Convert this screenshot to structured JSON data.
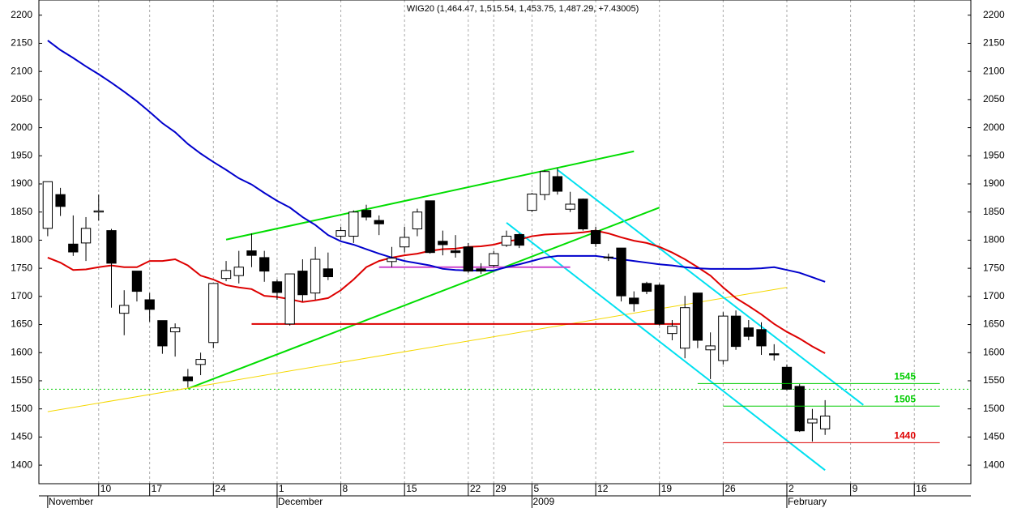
{
  "chart_data": {
    "type": "candlestick",
    "title": "WIG20 (1,464.47, 1,515.54, 1,453.75, 1,487.29, +7.43005)",
    "categories": [
      null,
      null,
      null,
      null,
      "10",
      null,
      null,
      null,
      "17",
      null,
      null,
      null,
      null,
      "24",
      null,
      null,
      null,
      null,
      "1",
      null,
      null,
      null,
      null,
      "8",
      null,
      null,
      null,
      null,
      "15",
      null,
      null,
      null,
      null,
      "22",
      null,
      "29",
      null,
      null,
      "5",
      null,
      null,
      null,
      null,
      "12",
      null,
      null,
      null,
      null,
      "19",
      null,
      null,
      null,
      null,
      "26",
      null,
      null,
      null,
      null,
      "2",
      null,
      null,
      null,
      null,
      "9",
      null,
      null,
      null,
      null,
      "16",
      null,
      null,
      null,
      null
    ],
    "months": [
      "November",
      null,
      null,
      null,
      null,
      null,
      null,
      null,
      null,
      null,
      null,
      null,
      null,
      null,
      null,
      null,
      null,
      null,
      "December",
      null,
      null,
      null,
      null,
      null,
      null,
      null,
      null,
      null,
      null,
      null,
      null,
      null,
      null,
      null,
      null,
      null,
      null,
      null,
      "2009",
      null,
      null,
      null,
      null,
      null,
      null,
      null,
      null,
      null,
      null,
      null,
      null,
      null,
      null,
      null,
      null,
      null,
      null,
      null,
      "February",
      null,
      null,
      null,
      null,
      null,
      null,
      null,
      null,
      null,
      null,
      null,
      null,
      null,
      null
    ],
    "open": [
      1821,
      1881,
      1793,
      1795,
      1850,
      1817,
      1670,
      1745,
      1694,
      1657,
      1637,
      1557,
      1579,
      1618,
      1732,
      1737,
      1781,
      1769,
      1726,
      1651,
      1745,
      1706,
      1749,
      1807,
      1807,
      1853,
      1835,
      1762,
      1788,
      1820,
      1870,
      1798,
      1781,
      1788,
      1749,
      1755,
      1791,
      1810,
      1853,
      1881,
      1913,
      1855,
      1873,
      1817,
      1770,
      1786,
      1697,
      1723,
      1720,
      1634,
      1608,
      1706,
      1605,
      1586,
      1665,
      1644,
      1641,
      1598,
      1574,
      1540,
      1475,
      1464.47,
      null,
      null,
      null,
      null,
      null,
      null,
      null,
      null,
      null,
      null,
      null
    ],
    "high": [
      1904,
      1893,
      1844,
      1841,
      1881,
      1820,
      1711,
      1745,
      1706,
      1657,
      1652,
      1571,
      1600,
      1723,
      1763,
      1781,
      1812,
      1781,
      1730,
      1740,
      1766,
      1788,
      1778,
      1824,
      1853,
      1863,
      1844,
      1788,
      1824,
      1856,
      1870,
      1817,
      1809,
      1795,
      1759,
      1781,
      1817,
      1812,
      1884,
      1925,
      1928,
      1886,
      1874,
      1824,
      1776,
      1786,
      1709,
      1726,
      1723,
      1658,
      1701,
      1706,
      1636,
      1672,
      1675,
      1658,
      1654,
      1615,
      1579,
      1544,
      1500,
      1515.54,
      null,
      null,
      null,
      null,
      null,
      null,
      null,
      null,
      null,
      null,
      null
    ],
    "low": [
      1807,
      1843,
      1772,
      1763,
      1835,
      1680,
      1631,
      1691,
      1655,
      1598,
      1593,
      1538,
      1560,
      1608,
      1727,
      1723,
      1752,
      1726,
      1694,
      1648,
      1691,
      1694,
      1729,
      1801,
      1795,
      1835,
      1809,
      1752,
      1778,
      1807,
      1776,
      1773,
      1769,
      1742,
      1740,
      1752,
      1788,
      1786,
      1850,
      1871,
      1881,
      1850,
      1817,
      1788,
      1763,
      1691,
      1673,
      1704,
      1648,
      1622,
      1590,
      1608,
      1553,
      1579,
      1605,
      1622,
      1596,
      1586,
      1533,
      1459,
      1442,
      1453.75,
      null,
      null,
      null,
      null,
      null,
      null,
      null,
      null,
      null,
      null,
      null
    ],
    "close": [
      1904,
      1860,
      1779,
      1821,
      1852,
      1759,
      1684,
      1709,
      1677,
      1612,
      1644,
      1550,
      1588,
      1723,
      1746,
      1752,
      1773,
      1745,
      1707,
      1740,
      1703,
      1766,
      1735,
      1817,
      1850,
      1841,
      1829,
      1768,
      1805,
      1850,
      1778,
      1792,
      1778,
      1745,
      1745,
      1776,
      1807,
      1791,
      1882,
      1922,
      1887,
      1864,
      1820,
      1794,
      1769,
      1701,
      1687,
      1709,
      1651,
      1647,
      1680,
      1622,
      1612,
      1665,
      1611,
      1629,
      1612,
      1596,
      1535,
      1461,
      1482,
      1487.29,
      null,
      null,
      null,
      null,
      null,
      null,
      null,
      null,
      null,
      null,
      null
    ],
    "up_color": "#ffffff",
    "down_color": "#000000",
    "series": [
      {
        "color": "#dd0000",
        "values": [
          1769,
          1760,
          1747,
          1748,
          1752,
          1755,
          1752,
          1752,
          1763,
          1763,
          1766,
          1755,
          1737,
          1730,
          1720,
          1716,
          1713,
          1701,
          1699,
          1695,
          1690,
          1693,
          1697,
          1711,
          1730,
          1752,
          1763,
          1769,
          1773,
          1776,
          1781,
          1784,
          1785,
          1788,
          1789,
          1792,
          1798,
          1801,
          1807,
          1810,
          1811,
          1812,
          1814,
          1817,
          1812,
          1805,
          1799,
          1795,
          1788,
          1778,
          1766,
          1752,
          1737,
          1716,
          1697,
          1683,
          1668,
          1651,
          1637,
          1625,
          1611,
          1599,
          null,
          null,
          null,
          null,
          null,
          null,
          null,
          null,
          null,
          null,
          null
        ]
      },
      {
        "color": "#0000cc",
        "values": [
          2155,
          2138,
          2124,
          2109,
          2095,
          2080,
          2064,
          2047,
          2028,
          2008,
          1992,
          1971,
          1954,
          1939,
          1925,
          1910,
          1899,
          1884,
          1870,
          1858,
          1841,
          1827,
          1809,
          1798,
          1792,
          1784,
          1776,
          1769,
          1763,
          1759,
          1755,
          1749,
          1747,
          1746,
          1746,
          1746,
          1752,
          1757,
          1763,
          1769,
          1772,
          1772,
          1772,
          1772,
          1769,
          1766,
          1763,
          1760,
          1757,
          1755,
          1752,
          1750,
          1749,
          1749,
          1749,
          1749,
          1750,
          1752,
          1747,
          1742,
          1734,
          1726,
          null,
          null,
          null,
          null,
          null,
          null,
          null,
          null,
          null,
          null,
          null
        ]
      }
    ],
    "trendlines": [
      {
        "color": "#00dd00",
        "x": [
          14,
          46
        ],
        "y": [
          1801,
          1958
        ]
      },
      {
        "color": "#00dd00",
        "x": [
          11,
          48
        ],
        "y": [
          1536,
          1858
        ]
      },
      {
        "color": "#f5d800",
        "x": [
          0,
          58
        ],
        "y": [
          1495,
          1716
        ]
      },
      {
        "color": "#00e0f0",
        "x": [
          40,
          64
        ],
        "y": [
          1925,
          1507
        ]
      },
      {
        "color": "#00e0f0",
        "x": [
          36,
          61
        ],
        "y": [
          1831,
          1391
        ]
      },
      {
        "color": "#cc44cc",
        "x": [
          26,
          41
        ],
        "y": [
          1752,
          1752
        ]
      },
      {
        "color": "#dd0000",
        "x": [
          16,
          50
        ],
        "y": [
          1651,
          1651
        ]
      }
    ],
    "levels": [
      {
        "value": 1545,
        "color": "#00cc00",
        "x": [
          51,
          70
        ]
      },
      {
        "value": 1505,
        "color": "#00cc00",
        "x": [
          53,
          70
        ]
      },
      {
        "value": 1440,
        "color": "#dd0000",
        "x": [
          53,
          70
        ]
      }
    ],
    "hline": {
      "value": 1535,
      "color": "#00cc00"
    },
    "ylim": [
      1367,
      2227
    ],
    "yticks": [
      1400,
      1450,
      1500,
      1550,
      1600,
      1650,
      1700,
      1750,
      1800,
      1850,
      1900,
      1950,
      2000,
      2050,
      2100,
      2150,
      2200
    ],
    "grid": true
  }
}
